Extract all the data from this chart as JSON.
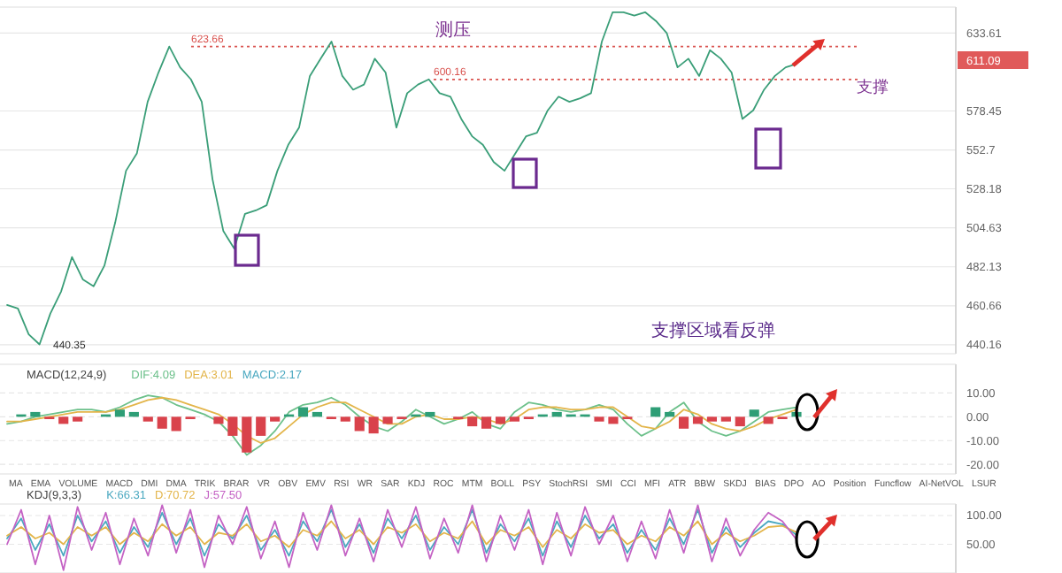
{
  "chart_data": [
    {
      "type": "line",
      "categories": [
        null,
        null,
        null,
        null,
        null,
        null,
        null,
        null,
        null,
        null,
        null,
        null,
        null,
        null,
        null,
        null,
        null,
        null,
        null,
        null,
        null,
        null,
        null,
        null,
        null,
        null,
        null,
        null,
        null,
        null,
        null,
        null,
        null,
        null,
        null,
        null,
        null,
        null,
        null,
        null,
        null,
        null,
        null,
        null,
        null,
        null,
        null,
        null,
        null,
        null,
        null,
        null,
        null,
        null,
        null,
        null,
        null,
        null,
        null,
        null,
        null,
        null,
        null,
        null,
        null,
        null,
        null,
        null,
        null,
        null,
        null,
        null,
        null,
        null
      ],
      "series": [
        {
          "color": "#3a9e78",
          "values": [
            461.1,
            459.2,
            445.6,
            440.35,
            456.5,
            468.5,
            487.7,
            475.1,
            471.3,
            482.8,
            507.8,
            539.4,
            550.4,
            584.7,
            605,
            623.66,
            608.7,
            600.2,
            584.7,
            534,
            502.7,
            492.6,
            512.9,
            515,
            518.1,
            539.4,
            556,
            567.3,
            602.6,
            614.9,
            627.3,
            602.6,
            593,
            596.6,
            614.9,
            605,
            567.3,
            590.6,
            596.6,
            600.2,
            590.6,
            588.2,
            573.1,
            561.6,
            556,
            544.9,
            539.4,
            550.4,
            561.6,
            563.9,
            578.9,
            588.2,
            584.7,
            587.1,
            590.6,
            627.3,
            649.2,
            649.2,
            646.6,
            649.2,
            642.6,
            633.6,
            608.7,
            614.9,
            602.6,
            621,
            614.9,
            605,
            573.1,
            578.9,
            593,
            602.6,
            608.7,
            611.09
          ]
        }
      ],
      "ylim": [
        435.6,
        653.1
      ],
      "yticks": [
        633.61,
        578.45,
        552.7,
        528.18,
        504.63,
        482.13,
        460.66,
        440.16
      ],
      "log": true,
      "grid": "y",
      "tick_labels": "y",
      "ref_lines": [
        {
          "axis": "y",
          "value": 623.66,
          "label": "623.66",
          "color": "#d9534f",
          "line_style": "dotted"
        },
        {
          "axis": "y",
          "value": 600.16,
          "label": "600.16",
          "color": "#d9534f",
          "line_style": "dotted"
        }
      ],
      "annotations": [
        "测压",
        "支撑",
        "支撑区域看反弹",
        "440.35",
        "611.09"
      ]
    },
    {
      "type": "bar",
      "title": "MACD(12,24,9)",
      "legend": "top left",
      "grid": "y",
      "tick_labels": "y",
      "categories": [
        null,
        null,
        null,
        null,
        null,
        null,
        null,
        null,
        null,
        null,
        null,
        null,
        null,
        null,
        null,
        null,
        null,
        null,
        null,
        null,
        null,
        null,
        null,
        null,
        null,
        null,
        null,
        null,
        null,
        null,
        null,
        null,
        null,
        null,
        null,
        null,
        null,
        null,
        null,
        null,
        null,
        null,
        null,
        null,
        null,
        null,
        null,
        null,
        null,
        null,
        null,
        null,
        null,
        null,
        null,
        null,
        null
      ],
      "series": [
        {
          "name": "DIF:4.09",
          "type": "line",
          "color": "#6cc08a",
          "values": [
            -3,
            -2,
            0,
            1,
            2,
            3,
            3,
            2,
            4,
            7,
            9,
            8,
            5,
            3,
            1,
            -2,
            -8,
            -16,
            -12,
            -6,
            2,
            5,
            6,
            8,
            5,
            0,
            -4,
            -6,
            -2,
            3,
            0,
            -3,
            -1,
            2,
            -3,
            -5,
            2,
            6,
            5,
            3,
            2,
            3,
            5,
            3,
            -3,
            -8,
            -5,
            2,
            6,
            -2,
            -6,
            -8,
            -6,
            -2,
            2,
            3,
            4
          ]
        },
        {
          "name": "DEA:3.01",
          "type": "line",
          "color": "#e3b54a",
          "values": [
            -2,
            -2,
            -1,
            0,
            1,
            2,
            2,
            2,
            3,
            5,
            7,
            8,
            7,
            5,
            3,
            1,
            -3,
            -8,
            -11,
            -9,
            -4,
            1,
            4,
            6,
            6,
            3,
            0,
            -3,
            -3,
            0,
            1,
            -1,
            -1,
            0,
            -1,
            -3,
            -1,
            3,
            4,
            4,
            3,
            3,
            4,
            4,
            0,
            -4,
            -5,
            -2,
            3,
            1,
            -3,
            -5,
            -6,
            -4,
            -1,
            1,
            3
          ]
        },
        {
          "name": "MACD:2.17",
          "type": "bar",
          "color": "#4aa8c0",
          "values": [
            0,
            1,
            2,
            -1,
            -3,
            -2,
            0,
            1,
            3,
            2,
            -2,
            -5,
            -6,
            -1,
            0,
            -3,
            -8,
            -15,
            -8,
            -2,
            1,
            4,
            2,
            -1,
            -2,
            -6,
            -7,
            -3,
            -1,
            1,
            2,
            0,
            -1,
            -4,
            -5,
            -3,
            -2,
            -1,
            1,
            2,
            1,
            1,
            -2,
            -3,
            -1,
            0,
            4,
            2,
            -5,
            -3,
            -2,
            -2,
            -4,
            3,
            -3,
            -1,
            2
          ],
          "colors": [
            "#2e9e76",
            "#2e9e76",
            "#2e9e76",
            "#d9424b",
            "#d9424b",
            "#d9424b",
            "#2e9e76",
            "#2e9e76",
            "#2e9e76",
            "#2e9e76",
            "#d9424b",
            "#d9424b",
            "#d9424b",
            "#d9424b",
            "#2e9e76",
            "#d9424b",
            "#d9424b",
            "#d9424b",
            "#d9424b",
            "#d9424b",
            "#2e9e76",
            "#2e9e76",
            "#2e9e76",
            "#d9424b",
            "#d9424b",
            "#d9424b",
            "#d9424b",
            "#d9424b",
            "#d9424b",
            "#2e9e76",
            "#2e9e76",
            "#2e9e76",
            "#d9424b",
            "#d9424b",
            "#d9424b",
            "#d9424b",
            "#d9424b",
            "#d9424b",
            "#2e9e76",
            "#2e9e76",
            "#2e9e76",
            "#2e9e76",
            "#d9424b",
            "#d9424b",
            "#d9424b",
            "#2e9e76",
            "#2e9e76",
            "#2e9e76",
            "#d9424b",
            "#d9424b",
            "#d9424b",
            "#d9424b",
            "#d9424b",
            "#2e9e76",
            "#d9424b",
            "#d9424b",
            "#2e9e76"
          ]
        }
      ],
      "ylim": [
        -24,
        22
      ],
      "yticks": [
        {
          "value": 10,
          "label": "10.00"
        },
        {
          "value": 0,
          "label": "0.00"
        },
        {
          "value": -10,
          "label": "-10.00"
        },
        {
          "value": -20,
          "label": "-20.00"
        }
      ]
    },
    {
      "type": "line",
      "title": "KDJ(9,3,3)",
      "legend": "top left",
      "grid": "y",
      "tick_labels": "y",
      "categories": [
        null,
        null,
        null,
        null,
        null,
        null,
        null,
        null,
        null,
        null,
        null,
        null,
        null,
        null,
        null,
        null,
        null,
        null,
        null,
        null,
        null,
        null,
        null,
        null,
        null,
        null,
        null,
        null,
        null,
        null,
        null,
        null,
        null,
        null,
        null,
        null,
        null,
        null,
        null,
        null,
        null,
        null,
        null,
        null,
        null,
        null,
        null,
        null,
        null,
        null,
        null,
        null,
        null,
        null,
        null,
        null,
        null
      ],
      "series": [
        {
          "name": "K:66.31",
          "color": "#4aa8c0",
          "values": [
            60,
            95,
            40,
            85,
            30,
            100,
            55,
            90,
            35,
            80,
            45,
            105,
            50,
            95,
            30,
            85,
            60,
            100,
            40,
            75,
            30,
            90,
            55,
            110,
            45,
            85,
            35,
            95,
            60,
            100,
            40,
            80,
            50,
            110,
            35,
            85,
            55,
            95,
            30,
            90,
            45,
            100,
            60,
            85,
            35,
            75,
            40,
            95,
            50,
            110,
            35,
            80,
            45,
            70,
            90,
            85,
            66
          ]
        },
        {
          "name": "D:70.72",
          "color": "#e3b54a",
          "values": [
            65,
            80,
            60,
            70,
            50,
            80,
            65,
            80,
            50,
            70,
            55,
            85,
            65,
            80,
            50,
            70,
            65,
            85,
            55,
            65,
            45,
            75,
            65,
            90,
            60,
            75,
            50,
            80,
            70,
            85,
            55,
            70,
            60,
            90,
            50,
            75,
            65,
            80,
            45,
            75,
            60,
            85,
            70,
            75,
            50,
            65,
            55,
            80,
            65,
            90,
            50,
            70,
            55,
            65,
            80,
            82,
            71
          ]
        },
        {
          "name": "J:57.50",
          "color": "#c462c4",
          "values": [
            50,
            110,
            15,
            100,
            5,
            115,
            40,
            105,
            15,
            95,
            30,
            118,
            35,
            110,
            10,
            100,
            50,
            115,
            25,
            90,
            10,
            105,
            40,
            118,
            30,
            95,
            20,
            110,
            45,
            115,
            25,
            95,
            35,
            118,
            20,
            100,
            40,
            110,
            15,
            105,
            30,
            115,
            50,
            100,
            20,
            90,
            25,
            110,
            35,
            118,
            20,
            95,
            30,
            75,
            105,
            90,
            58
          ]
        }
      ],
      "ylim": [
        0,
        120
      ],
      "yticks": [
        {
          "value": 100,
          "label": "100.00"
        },
        {
          "value": 50,
          "label": "50.00"
        }
      ]
    },
    {
      "type": "other",
      "annotations": [
        "MA",
        "EMA",
        "VOLUME",
        "MACD",
        "DMI",
        "DMA",
        "TRIK",
        "BRAR",
        "VR",
        "OBV",
        "EMV",
        "RSI",
        "WR",
        "SAR",
        "KDJ",
        "ROC",
        "MTM",
        "BOLL",
        "PSY",
        "StochRSI",
        "SMI",
        "CCI",
        "MFI",
        "ATR",
        "BBW",
        "SKDJ",
        "BIAS",
        "DPO",
        "AO",
        "Position",
        "Funcflow",
        "AI-NetVOL",
        "LSUR"
      ]
    }
  ]
}
